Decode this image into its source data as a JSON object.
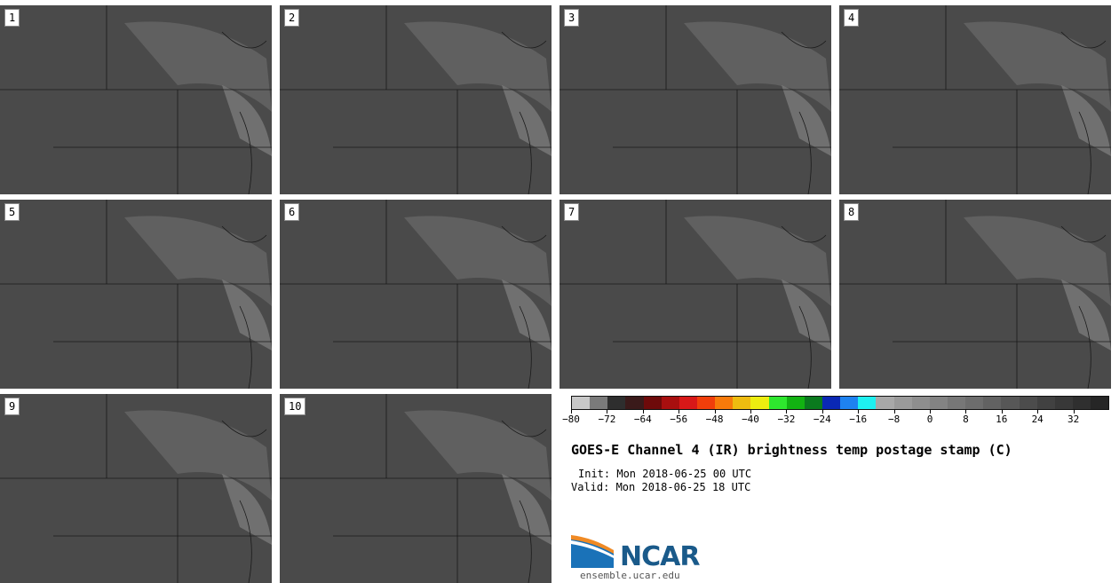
{
  "panels": [
    {
      "label": "1"
    },
    {
      "label": "2"
    },
    {
      "label": "3"
    },
    {
      "label": "4"
    },
    {
      "label": "5"
    },
    {
      "label": "6"
    },
    {
      "label": "7"
    },
    {
      "label": "8"
    },
    {
      "label": "9"
    },
    {
      "label": "10"
    }
  ],
  "colorbar": {
    "ticks": [
      "−80",
      "−72",
      "−64",
      "−56",
      "−48",
      "−40",
      "−32",
      "−24",
      "−16",
      "−8",
      "0",
      "8",
      "16",
      "24",
      "32"
    ],
    "min": -80,
    "max": 40,
    "colors": [
      "#c8c8c8",
      "#7a7a7a",
      "#2e2e2e",
      "#3a1a1a",
      "#6e0a0a",
      "#a80f0f",
      "#d81818",
      "#f03e0b",
      "#f77a0a",
      "#eebb10",
      "#eded10",
      "#2ee72e",
      "#12b212",
      "#0a7a1e",
      "#0a28b4",
      "#1e82f0",
      "#1ef0f0",
      "#a8a8a8",
      "#9a9a9a",
      "#8e8e8e",
      "#838383",
      "#777777",
      "#6d6d6d",
      "#626262",
      "#575757",
      "#4c4c4c",
      "#414141",
      "#383838",
      "#2f2f2f",
      "#262626"
    ]
  },
  "title": "GOES-E Channel 4 (IR) brightness temp postage stamp (C)",
  "init": "Init: Mon 2018-06-25 00 UTC",
  "valid": "Valid: Mon 2018-06-25 18 UTC",
  "logo": {
    "text": "NCAR",
    "url": "ensemble.ucar.edu"
  }
}
